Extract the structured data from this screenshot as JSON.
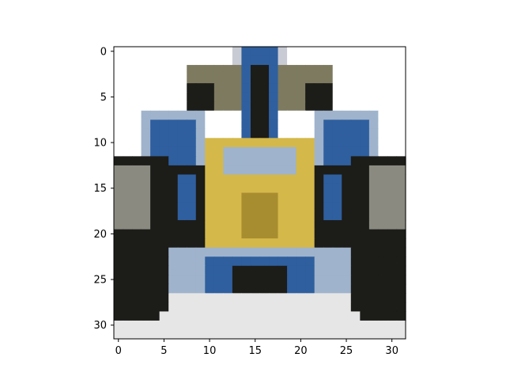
{
  "figure": {
    "subject": "pixelated 32x32 image of a formula racing car viewed from the front",
    "x_ticks": [
      "0",
      "5",
      "10",
      "15",
      "20",
      "25",
      "30"
    ],
    "y_ticks": [
      "0",
      "5",
      "10",
      "15",
      "20",
      "25",
      "30"
    ],
    "image_size": [
      32,
      32
    ],
    "palette": {
      "background": "#ffffff",
      "wing_gray": "#7d7a60",
      "dark": "#1c1c18",
      "blue": "#2f5f9e",
      "light_blue": "#9fb3cc",
      "yellow": "#d4b84a",
      "dark_yellow": "#a88c30",
      "white_gray": "#e6e6e6",
      "mid_gray": "#8b8a80"
    }
  }
}
